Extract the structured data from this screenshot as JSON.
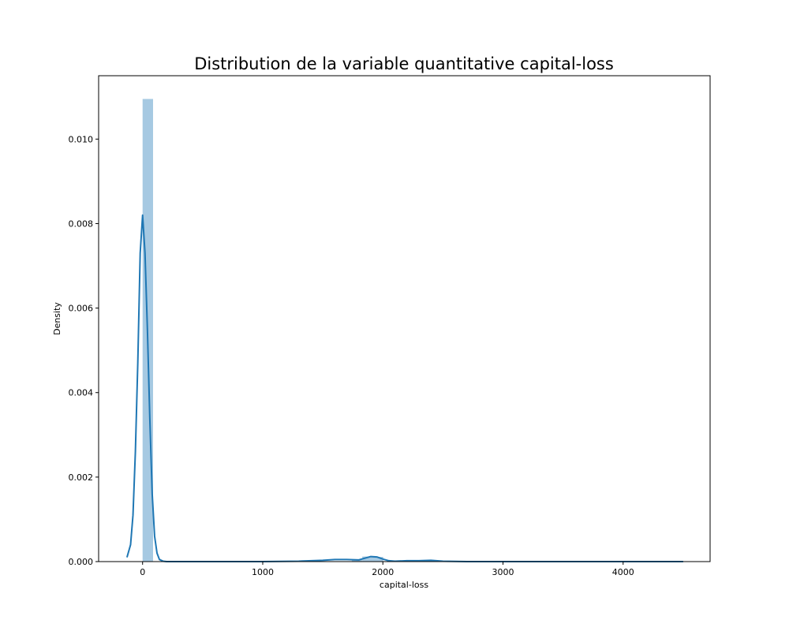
{
  "chart_data": {
    "type": "histogram",
    "title": "Distribution de la variable quantitative capital-loss",
    "xlabel": "capital-loss",
    "ylabel": "Density",
    "xlim": [
      -366,
      4724
    ],
    "ylim": [
      0,
      0.0115
    ],
    "grid": false,
    "x_ticks": [
      0,
      1000,
      2000,
      3000,
      4000
    ],
    "y_ticks": [
      0.0,
      0.002,
      0.004,
      0.006,
      0.008,
      0.01
    ],
    "x_tick_labels": [
      "0",
      "1000",
      "2000",
      "3000",
      "4000"
    ],
    "y_tick_labels": [
      "0.000",
      "0.002",
      "0.004",
      "0.006",
      "0.008",
      "0.010"
    ],
    "bar_width": 87.1,
    "histogram": {
      "x": [
        0,
        1742,
        1829,
        1916
      ],
      "values": [
        0.01095,
        5e-05,
        0.00012,
        0.00011
      ]
    },
    "kde": {
      "x": [
        -130,
        -100,
        -80,
        -60,
        -40,
        -20,
        0,
        20,
        40,
        60,
        80,
        100,
        120,
        140,
        170,
        200,
        300,
        500,
        1000,
        1300,
        1500,
        1600,
        1700,
        1800,
        1850,
        1900,
        1950,
        2000,
        2050,
        2100,
        2200,
        2300,
        2400,
        2500,
        2700,
        3000,
        3500,
        4000,
        4500
      ],
      "values": [
        0.0001,
        0.0004,
        0.0011,
        0.0026,
        0.0047,
        0.0073,
        0.0082,
        0.0073,
        0.0055,
        0.0034,
        0.0016,
        0.0006,
        0.0002,
        5e-05,
        1e-05,
        0.0,
        0.0,
        0.0,
        0.0,
        1e-05,
        3e-05,
        5e-05,
        5e-05,
        4e-05,
        8e-05,
        0.00012,
        0.00011,
        6e-05,
        2e-05,
        1e-05,
        2e-05,
        2e-05,
        3e-05,
        1e-05,
        0.0,
        0.0,
        0.0,
        0.0,
        0.0
      ]
    },
    "colors": {
      "bar": "#a6c9e2",
      "line": "#1f77b4",
      "axes": "#000000"
    }
  }
}
